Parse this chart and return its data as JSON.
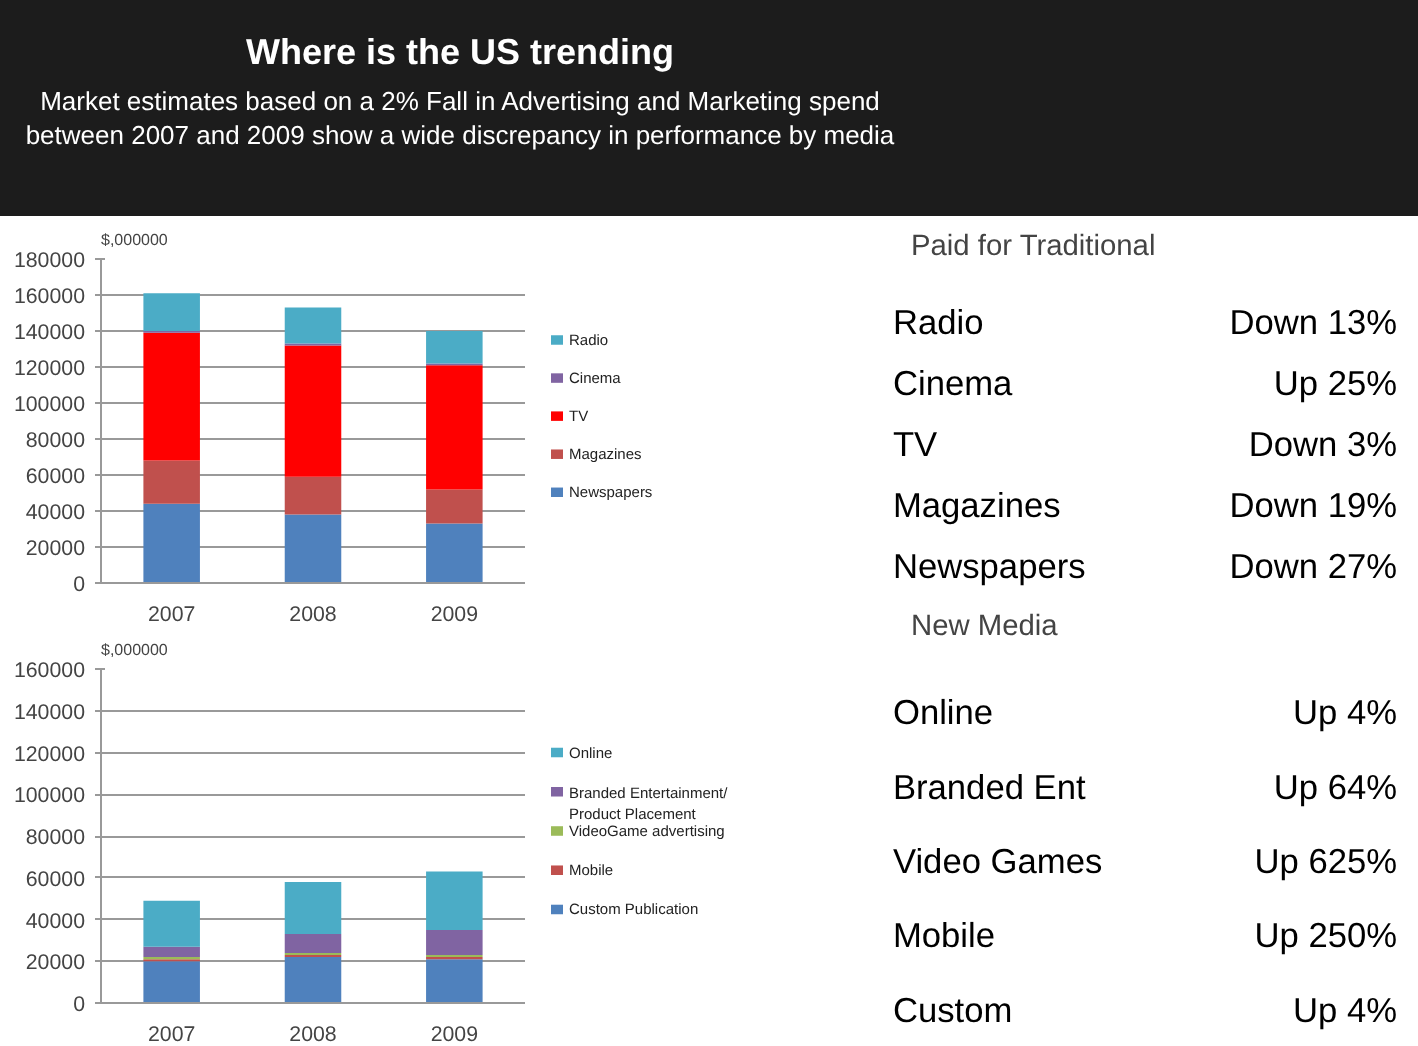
{
  "chart_data": [
    {
      "type": "bar",
      "title": "Where is the US trending",
      "subtitle": "Market estimates based on a 2% Fall in Advertising and Marketing spend between 2007 and 2009 show a wide discrepancy in performance by media",
      "ylabel": "$,000000",
      "categories": [
        "2007",
        "2008",
        "2009"
      ],
      "stacked": true,
      "ylim": [
        0,
        180000
      ],
      "yticks": [
        0,
        20000,
        40000,
        60000,
        80000,
        100000,
        120000,
        140000,
        160000,
        180000
      ],
      "grid": "y",
      "legend": "right",
      "series": [
        {
          "name": "Newspapers",
          "color": "#4f81bd",
          "values": [
            44000,
            38000,
            33000
          ]
        },
        {
          "name": "Magazines",
          "color": "#c0504d",
          "values": [
            24000,
            21000,
            19000
          ]
        },
        {
          "name": "TV",
          "color": "#ff0000",
          "values": [
            71000,
            73000,
            69000
          ]
        },
        {
          "name": "Cinema",
          "color": "#8064a2",
          "values": [
            1000,
            1000,
            1000
          ]
        },
        {
          "name": "Radio",
          "color": "#4bacc6",
          "values": [
            21000,
            20000,
            18000
          ]
        }
      ]
    },
    {
      "type": "bar",
      "ylabel": "$,000000",
      "categories": [
        "2007",
        "2008",
        "2009"
      ],
      "stacked": true,
      "ylim": [
        0,
        160000
      ],
      "yticks": [
        0,
        20000,
        40000,
        60000,
        80000,
        100000,
        120000,
        140000,
        160000
      ],
      "grid": "y",
      "legend": "right",
      "series": [
        {
          "name": "Custom Publication",
          "color": "#4f81bd",
          "values": [
            20000,
            22000,
            21000
          ]
        },
        {
          "name": "Mobile",
          "color": "#c0504d",
          "values": [
            1000,
            1000,
            1000
          ]
        },
        {
          "name": "VideoGame advertising",
          "color": "#9bbb59",
          "values": [
            1000,
            1000,
            1000
          ]
        },
        {
          "name": "Branded Entertainment/ Product Placement",
          "color": "#8064a2",
          "values": [
            5000,
            9000,
            12000
          ]
        },
        {
          "name": "Online",
          "color": "#4bacc6",
          "values": [
            22000,
            25000,
            28000
          ]
        }
      ]
    },
    {
      "type": "other",
      "title": "Paid for Traditional",
      "categories": [
        "Radio",
        "Cinema",
        "TV",
        "Magazines",
        "Newspapers"
      ],
      "value_labels": [
        "Down 13%",
        "Up 25%",
        "Down 3%",
        "Down 19%",
        "Down 27%"
      ]
    },
    {
      "type": "other",
      "title": "New Media",
      "categories": [
        "Online",
        "Branded Ent",
        "Video Games",
        "Mobile",
        "Custom"
      ],
      "value_labels": [
        "Up 4%",
        "Up 64%",
        "Up 625%",
        "Up 250%",
        "Up 4%"
      ]
    }
  ]
}
